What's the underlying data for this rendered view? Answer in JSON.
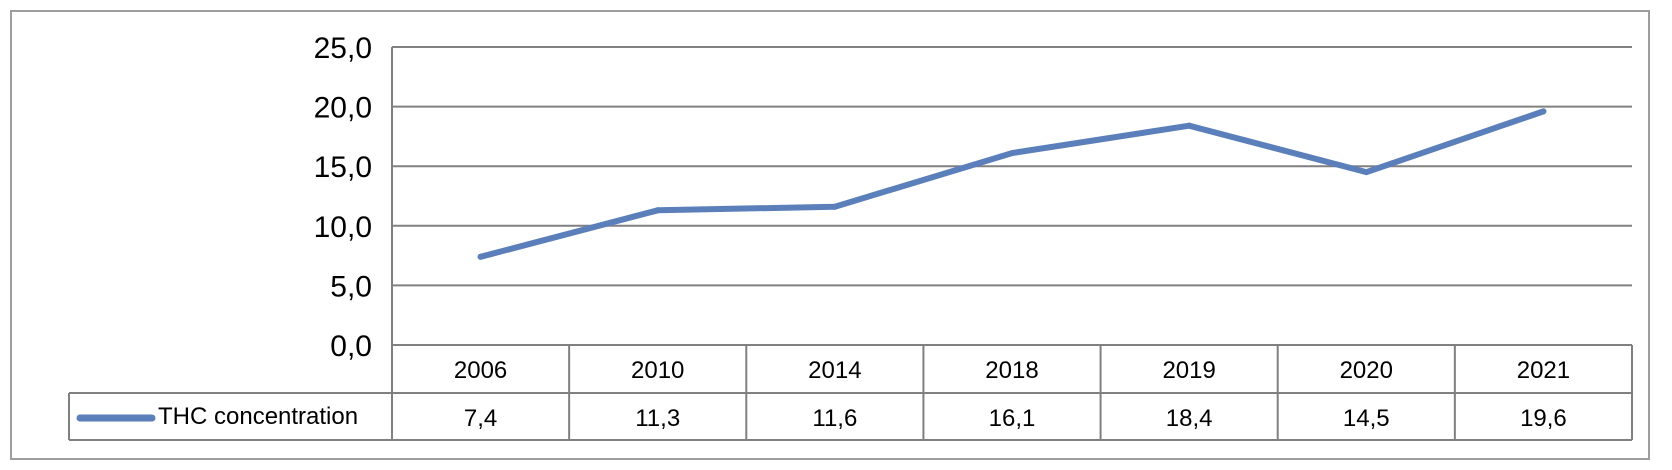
{
  "chart_data": {
    "type": "line",
    "categories": [
      "2006",
      "2010",
      "2014",
      "2018",
      "2019",
      "2020",
      "2021"
    ],
    "series": [
      {
        "name": "THC concentration",
        "values": [
          7.4,
          11.3,
          11.6,
          16.1,
          18.4,
          14.5,
          19.6
        ],
        "labels": [
          "7,4",
          "11,3",
          "11,6",
          "16,1",
          "18,4",
          "14,5",
          "19,6"
        ]
      }
    ],
    "y_ticks": [
      "0,0",
      "5,0",
      "10,0",
      "15,0",
      "20,0",
      "25,0"
    ],
    "ylim": [
      0,
      25
    ],
    "grid": true,
    "legend": "data-table",
    "colors": {
      "line": "#5b7fba",
      "grid": "#808080",
      "frame": "#9e9e9e"
    }
  }
}
